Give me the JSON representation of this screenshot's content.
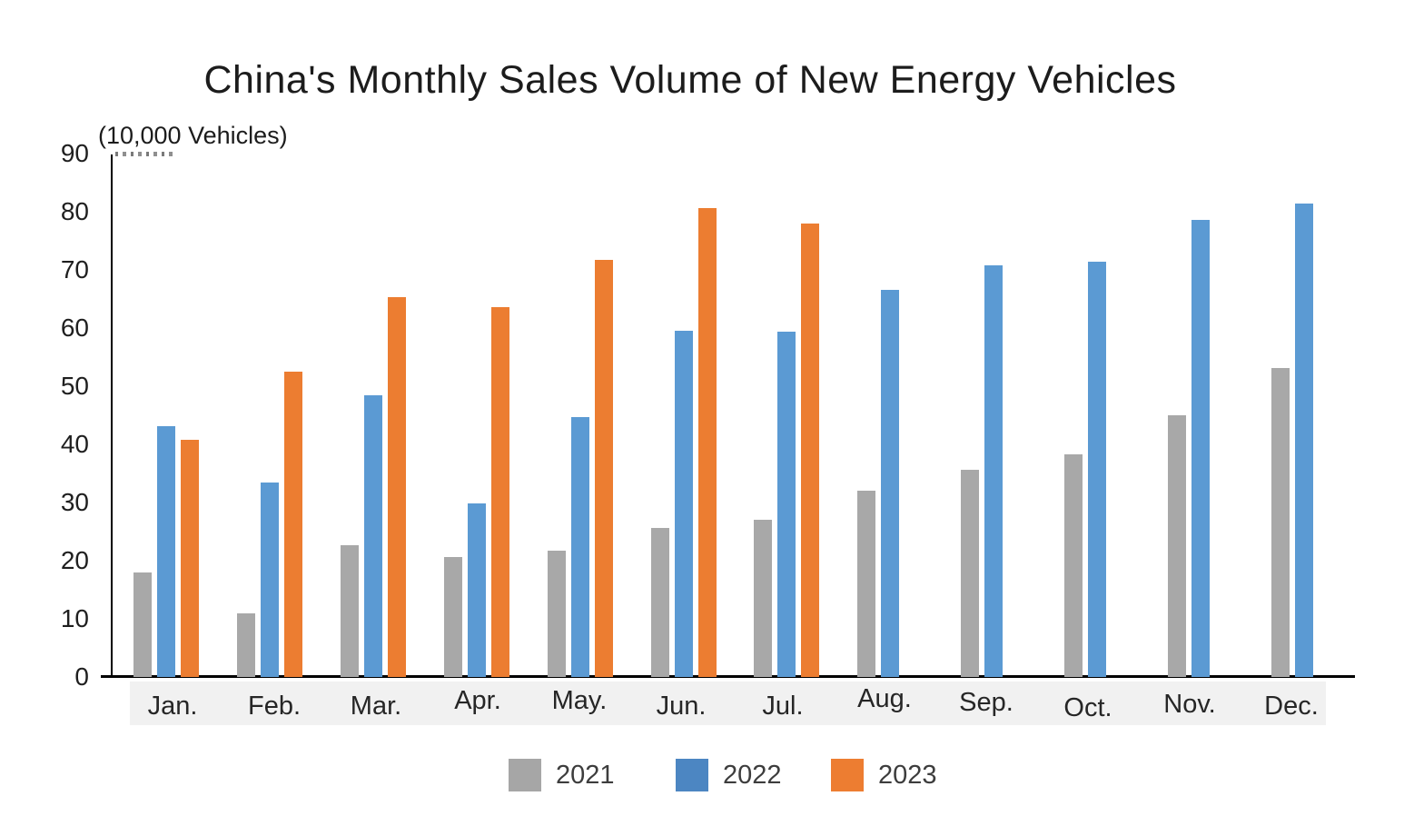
{
  "title": "China's Monthly Sales Volume of New Energy Vehicles",
  "unit_label": "(10,000 Vehicles)",
  "colors": {
    "bar_2021": "#a8a8a8",
    "bar_2022": "#5b9ad3",
    "bar_2023": "#ec7d31",
    "legend_2021": "#a6a6a6",
    "legend_2022": "#4c86c2",
    "legend_2023": "#ed7d31",
    "axis": "#000000",
    "label_strip": "#f1f1f1",
    "text": "#1c1c1c"
  },
  "chart_data": {
    "type": "bar",
    "title": "China's Monthly Sales Volume of New Energy Vehicles",
    "ylabel": "(10,000 Vehicles)",
    "xlabel": "",
    "ylim": [
      0,
      90
    ],
    "yticks": [
      0,
      10,
      20,
      30,
      40,
      50,
      60,
      70,
      80,
      90
    ],
    "grid": false,
    "legend_position": "bottom",
    "categories": [
      "Jan.",
      "Feb.",
      "Mar.",
      "Apr.",
      "May.",
      "Jun.",
      "Jul.",
      "Aug.",
      "Sep.",
      "Oct.",
      "Nov.",
      "Dec."
    ],
    "series": [
      {
        "name": "2021",
        "color": "#a8a8a8",
        "values": [
          17.9,
          11.0,
          22.6,
          20.6,
          21.7,
          25.6,
          27.1,
          32.1,
          35.7,
          38.3,
          45.0,
          53.1
        ]
      },
      {
        "name": "2022",
        "color": "#5b9ad3",
        "values": [
          43.1,
          33.4,
          48.4,
          29.9,
          44.7,
          59.6,
          59.3,
          66.6,
          70.8,
          71.4,
          78.6,
          81.4
        ]
      },
      {
        "name": "2023",
        "color": "#ec7d31",
        "values": [
          40.8,
          52.5,
          65.3,
          63.6,
          71.7,
          80.6,
          78.0,
          null,
          null,
          null,
          null,
          null
        ]
      }
    ]
  },
  "legend": {
    "items": [
      {
        "label": "2021",
        "color": "#a6a6a6"
      },
      {
        "label": "2022",
        "color": "#4c86c2"
      },
      {
        "label": "2023",
        "color": "#ed7d31"
      }
    ]
  }
}
